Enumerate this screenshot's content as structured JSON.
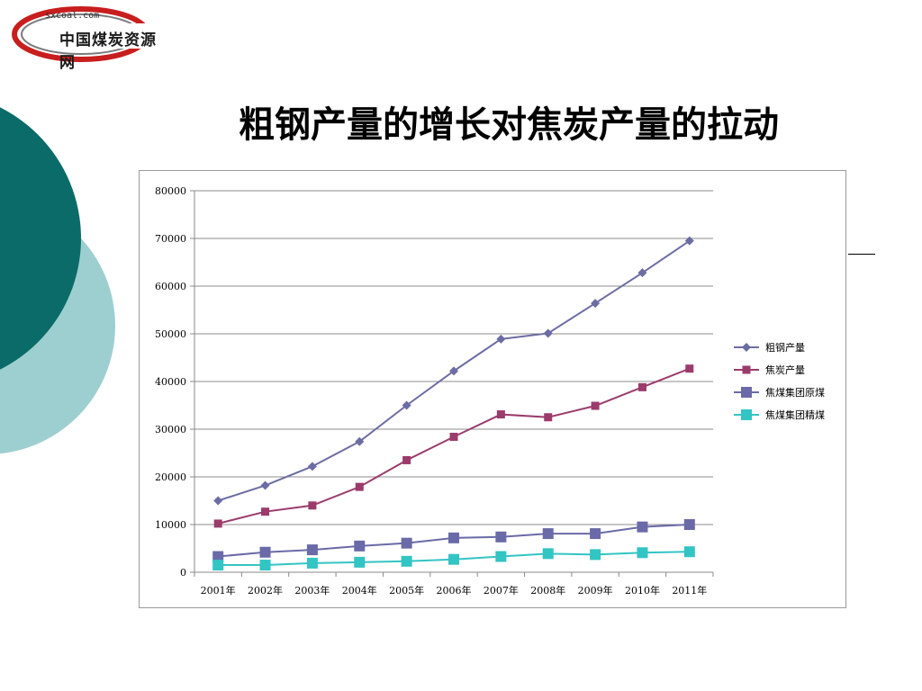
{
  "logo": {
    "url": "sxcoal.com",
    "name": "中国煤炭资源网"
  },
  "page": {
    "title": "粗钢产量的增长对焦炭产量的拉动"
  },
  "colors": {
    "dark_teal": "#0b6b68",
    "light_teal": "#9ecfd0"
  },
  "chart_data": {
    "type": "line",
    "title": "",
    "xlabel": "",
    "ylabel": "",
    "ylim": [
      0,
      80000
    ],
    "yticks": [
      0,
      10000,
      20000,
      30000,
      40000,
      50000,
      60000,
      70000,
      80000
    ],
    "grid": true,
    "legend_position": "right",
    "categories": [
      "2001年",
      "2002年",
      "2003年",
      "2004年",
      "2005年",
      "2006年",
      "2007年",
      "2008年",
      "2009年",
      "2010年",
      "2011年"
    ],
    "series": [
      {
        "name": "粗钢产量",
        "color": "#6c6ca4",
        "marker": "diamond",
        "values": [
          15000,
          18200,
          22200,
          27400,
          35000,
          42200,
          48900,
          50100,
          56400,
          62800,
          69500
        ]
      },
      {
        "name": "焦炭产量",
        "color": "#9b3b6b",
        "marker": "square",
        "values": [
          10200,
          12700,
          14000,
          17900,
          23500,
          28400,
          33100,
          32500,
          34900,
          38800,
          42700
        ]
      },
      {
        "name": "焦煤集团原煤",
        "color": "#6a6aa8",
        "marker": "square-large",
        "values": [
          3300,
          4200,
          4700,
          5500,
          6100,
          7200,
          7400,
          8100,
          8100,
          9500,
          10000
        ]
      },
      {
        "name": "焦煤集团精煤",
        "color": "#33c4c4",
        "marker": "square-large",
        "values": [
          1500,
          1500,
          1900,
          2100,
          2300,
          2700,
          3300,
          3900,
          3700,
          4100,
          4300
        ]
      }
    ]
  }
}
